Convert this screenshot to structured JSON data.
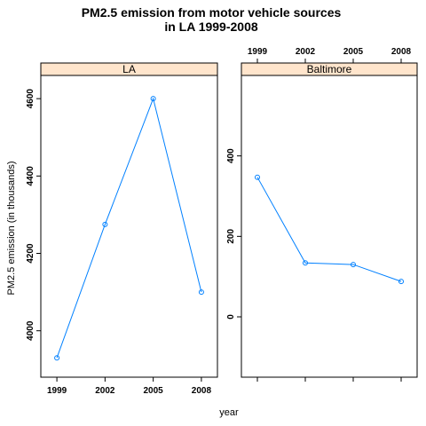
{
  "chart_data": {
    "type": "line",
    "title": "PM2.5 emission from motor vehicle sources",
    "subtitle": "in LA 1999-2008",
    "xlabel": "year",
    "ylabel": "PM2.5 emission (in thousands)",
    "x_ticks": [
      1999,
      2002,
      2005,
      2008
    ],
    "line_color": "#0080ff",
    "strip_color": "#ffe5cc",
    "grid": false,
    "panels": [
      {
        "name": "LA",
        "x": [
          1999,
          2002,
          2005,
          2008
        ],
        "y": [
          3930,
          4275,
          4600,
          4100
        ],
        "ylim": [
          3880,
          4660
        ],
        "y_ticks": [
          4000,
          4200,
          4400,
          4600
        ]
      },
      {
        "name": "Baltimore",
        "x": [
          1999,
          2002,
          2005,
          2008
        ],
        "y": [
          347,
          134,
          130,
          88
        ],
        "ylim": [
          -150,
          600
        ],
        "y_ticks": [
          0,
          200,
          400
        ]
      }
    ]
  }
}
